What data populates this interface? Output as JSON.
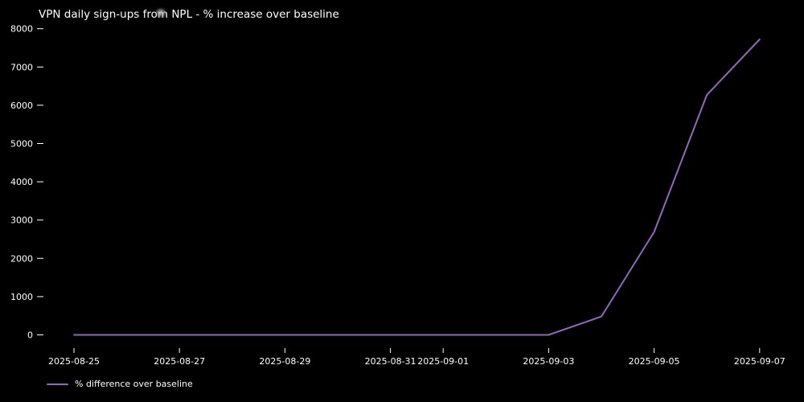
{
  "chart": {
    "title": "VPN daily sign-ups from NPL - % increase over baseline",
    "legend_label": "% difference over baseline",
    "background_color": "#000000",
    "text_color": "#ffffff",
    "line_color": "#9467bd"
  },
  "icons": {
    "cursor_smudge": "blurred-gray-dot-over-title"
  },
  "chart_data": {
    "type": "line",
    "title": "VPN daily sign-ups from NPL - % increase over baseline",
    "xlabel": "",
    "ylabel": "",
    "grid": false,
    "legend_position": "lower-left",
    "background": "#000000",
    "x": [
      "2025-08-25",
      "2025-08-26",
      "2025-08-27",
      "2025-08-28",
      "2025-08-29",
      "2025-08-30",
      "2025-08-31",
      "2025-09-01",
      "2025-09-02",
      "2025-09-03",
      "2025-09-04",
      "2025-09-05",
      "2025-09-06",
      "2025-09-07"
    ],
    "series": [
      {
        "name": "% difference over baseline",
        "color": "#9467bd",
        "values": [
          0,
          0,
          0,
          0,
          0,
          0,
          0,
          0,
          0,
          0,
          480,
          2690,
          6270,
          7720
        ]
      }
    ],
    "x_tick_labels": [
      "2025-08-25",
      "2025-08-27",
      "2025-08-29",
      "2025-08-31",
      "2025-09-01",
      "2025-09-03",
      "2025-09-05",
      "2025-09-07"
    ],
    "y_ticks": [
      0,
      1000,
      2000,
      3000,
      4000,
      5000,
      6000,
      7000,
      8000
    ],
    "ylim": [
      0,
      8000
    ]
  }
}
